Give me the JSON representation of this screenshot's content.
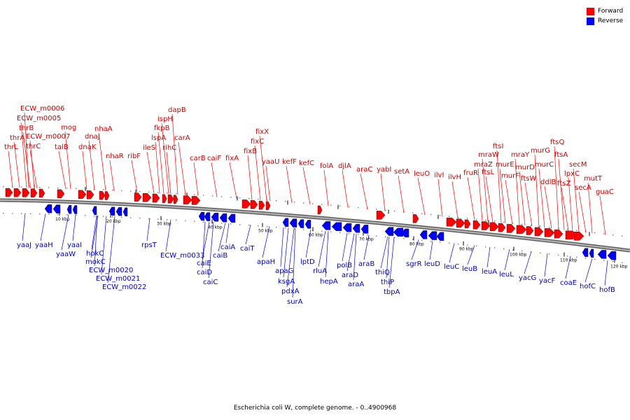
{
  "caption": "Escherichia coli W, complete genome. - 0..4900968",
  "legend": [
    {
      "label": "Forward",
      "color": "#ff0000"
    },
    {
      "label": "Reverse",
      "color": "#0000ff"
    }
  ],
  "colors": {
    "forward": "#ff0000",
    "reverse": "#0000ff",
    "forward_text": "#d40000",
    "reverse_text": "#0000cc",
    "backbone": "#888888"
  },
  "ticks": [
    {
      "label": "10 kbp"
    },
    {
      "label": "20 kbp"
    },
    {
      "label": "30 kbp"
    },
    {
      "label": "40 kbp"
    },
    {
      "label": "50 kbp"
    },
    {
      "label": "60 kbp"
    },
    {
      "label": "70 kbp"
    },
    {
      "label": "80 kbp"
    },
    {
      "label": "90 kbp"
    },
    {
      "label": "100 kbp"
    },
    {
      "label": "110 kbp"
    },
    {
      "label": "120 kbp"
    }
  ],
  "forward_genes": [
    "thrL",
    "thrA",
    "thrB",
    "ECW_m0006",
    "ECW_m0005",
    "thrC",
    "ECW_m0007",
    "mog",
    "talB",
    "dnaK",
    "dnaJ",
    "nhaA",
    "nhaR",
    "ribF",
    "ileS",
    "lspA",
    "fkpB",
    "ispH",
    "rihC",
    "dapB",
    "carA",
    "carB",
    "caiF",
    "fixA",
    "fixB",
    "fixC",
    "fixX",
    "yaaU",
    "kefF",
    "kefC",
    "folA",
    "djlA",
    "araC",
    "yabI",
    "setA",
    "leuO",
    "ilvI",
    "ilvH",
    "fruR",
    "mraZ",
    "mraW",
    "ftsL",
    "ftsI",
    "murE",
    "murF",
    "mraY",
    "murD",
    "ftsW",
    "murG",
    "murC",
    "ddlB",
    "ftsQ",
    "ftsA",
    "ftsZ",
    "lpxC",
    "secM",
    "secA",
    "mutT",
    "guaC"
  ],
  "reverse_genes": [
    "yaaJ",
    "yaaH",
    "yaaW",
    "yaaI",
    "hokC",
    "mokC",
    "ECW_m0020",
    "ECW_m0021",
    "ECW_m0022",
    "rpsT",
    "ECW_m0033",
    "caiE",
    "caiD",
    "caiC",
    "caiB",
    "caiA",
    "caiT",
    "apaH",
    "apaG",
    "ksgA",
    "pdxA",
    "surA",
    "lptD",
    "rluA",
    "hepA",
    "polB",
    "araD",
    "araA",
    "araB",
    "thiQ",
    "thiP",
    "tbpA",
    "sgrR",
    "leuD",
    "leuC",
    "leuB",
    "leuA",
    "leuL",
    "yacG",
    "yacF",
    "coaE",
    "hofC",
    "hofB"
  ]
}
